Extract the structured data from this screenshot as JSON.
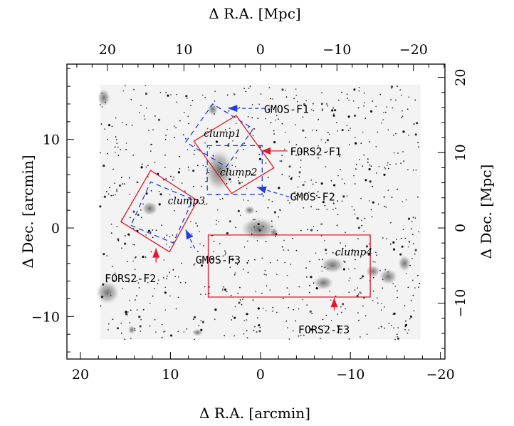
{
  "chart_data": {
    "type": "scatter",
    "title": "",
    "bottom_axis": {
      "label": "Δ R.A.   [arcmin]",
      "range": [
        21.5,
        -20.5
      ],
      "ticks": [
        20,
        10,
        0,
        -10,
        -20
      ],
      "tick_labels": [
        "20",
        "10",
        "0",
        "−10",
        "−20"
      ]
    },
    "left_axis": {
      "label": "Δ Dec.   [arcmin]",
      "range": [
        -14.8,
        18.5
      ],
      "ticks": [
        -10,
        0,
        10
      ],
      "tick_labels": [
        "−10",
        "0",
        "10"
      ]
    },
    "top_axis": {
      "label": "Δ R.A.   [Mpc]",
      "ticks": [
        20,
        10,
        0,
        -10,
        -20
      ],
      "tick_labels": [
        "20",
        "10",
        "0",
        "−10",
        "−20"
      ],
      "arcmin_per_unit": 0.85
    },
    "right_axis": {
      "label": "Δ Dec.   [Mpc]",
      "ticks": [
        -10,
        0,
        10,
        20
      ],
      "tick_labels": [
        "−10",
        "0",
        "10",
        "20"
      ],
      "arcmin_per_unit": 0.85
    },
    "grid": false,
    "background": "grayscale galaxy density map with point sources",
    "fields": [
      {
        "name": "GMOS-F1",
        "instrument": "GMOS",
        "style": "dashed",
        "color": "#1f3fe0",
        "corners": [
          [
            8.3,
            9.7
          ],
          [
            5.3,
            14.0
          ],
          [
            0.8,
            11.2
          ],
          [
            3.8,
            6.9
          ]
        ],
        "arrow_from": [
          -0.5,
          13.5
        ],
        "arrow_to": [
          3.6,
          13.5
        ]
      },
      {
        "name": "FORS2-F1",
        "instrument": "FORS2",
        "style": "solid",
        "color": "#e0182a",
        "corners": [
          [
            7.4,
            9.8
          ],
          [
            2.7,
            12.7
          ],
          [
            -1.5,
            6.8
          ],
          [
            3.2,
            3.9
          ]
        ],
        "arrow_from": [
          -3.0,
          8.7
        ],
        "arrow_to": [
          -0.1,
          8.7
        ]
      },
      {
        "name": "GMOS-F2",
        "instrument": "GMOS",
        "style": "dashed",
        "color": "#1f3fe0",
        "corners": [
          [
            5.9,
            9.3
          ],
          [
            -0.2,
            9.3
          ],
          [
            -0.2,
            3.8
          ],
          [
            5.9,
            3.8
          ]
        ],
        "arrow_from": [
          -3.2,
          3.5
        ],
        "arrow_to": [
          0.4,
          4.6
        ]
      },
      {
        "name": "FORS2-F2",
        "instrument": "FORS2",
        "style": "solid",
        "color": "#e0182a",
        "corners": [
          [
            15.5,
            0.7
          ],
          [
            10.1,
            -2.7
          ],
          [
            7.0,
            3.1
          ],
          [
            12.2,
            6.5
          ]
        ],
        "arrow_from": [
          11.6,
          -3.9
        ],
        "arrow_to": [
          11.6,
          -2.3
        ]
      },
      {
        "name": "GMOS-F3",
        "instrument": "GMOS",
        "style": "dashed",
        "color": "#1f3fe0",
        "corners": [
          [
            14.4,
            0.3
          ],
          [
            9.7,
            -1.7
          ],
          [
            7.5,
            3.2
          ],
          [
            12.2,
            5.2
          ]
        ],
        "arrow_from": [
          7.3,
          -2.3
        ],
        "arrow_to": [
          8.3,
          -0.2
        ]
      },
      {
        "name": "FORS2-F3",
        "instrument": "FORS2",
        "style": "solid",
        "color": "#e0182a",
        "corners": [
          [
            5.8,
            -0.8
          ],
          [
            -12.2,
            -0.8
          ],
          [
            -12.2,
            -7.8
          ],
          [
            5.8,
            -7.8
          ]
        ],
        "arrow_from": [
          -8.2,
          -9.3
        ],
        "arrow_to": [
          -8.2,
          -7.9
        ]
      }
    ],
    "field_labels": [
      {
        "text": "GMOS-F1",
        "x": -0.4,
        "y": 13.4
      },
      {
        "text": "FORS2-F1",
        "x": -3.3,
        "y": 8.6
      },
      {
        "text": "GMOS-F2",
        "x": -3.3,
        "y": 3.5
      },
      {
        "text": "GMOS-F3",
        "x": 7.2,
        "y": -3.6
      },
      {
        "text": "FORS2-F2",
        "x": 17.3,
        "y": -5.7
      },
      {
        "text": "FORS2-F3",
        "x": -4.2,
        "y": -11.5
      }
    ],
    "clumps": [
      {
        "name": "clump1",
        "x": 6.3,
        "y": 10.7
      },
      {
        "name": "clump2",
        "x": 4.5,
        "y": 6.3
      },
      {
        "name": "clump3",
        "x": 10.3,
        "y": 3.1
      },
      {
        "name": "clump4",
        "x": -8.3,
        "y": -2.7
      }
    ]
  },
  "colors": {
    "fors2": "#e0182a",
    "gmos": "#1f3fe0",
    "frame": "#000000"
  }
}
